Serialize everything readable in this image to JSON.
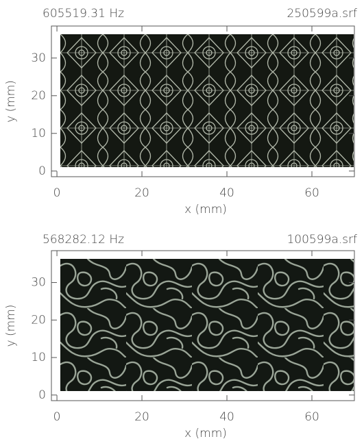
{
  "chart_data": [
    {
      "type": "image",
      "title": "605519.31 Hz",
      "subtitle": "250599a.srf",
      "xlabel": "x (mm)",
      "ylabel": "y (mm)",
      "xlim": [
        -1.3,
        70
      ],
      "ylim": [
        -1.5,
        38.5
      ],
      "xticks": [
        0,
        20,
        40,
        60
      ],
      "yticks": [
        0,
        10,
        20,
        30
      ]
    },
    {
      "type": "image",
      "title": "568282.12 Hz",
      "subtitle": "100599a.srf",
      "xlabel": "x (mm)",
      "ylabel": "y (mm)",
      "xlim": [
        -1.3,
        70
      ],
      "ylim": [
        -1.5,
        38.5
      ],
      "xticks": [
        0,
        20,
        40,
        60
      ],
      "yticks": [
        0,
        10,
        20,
        30
      ]
    }
  ]
}
